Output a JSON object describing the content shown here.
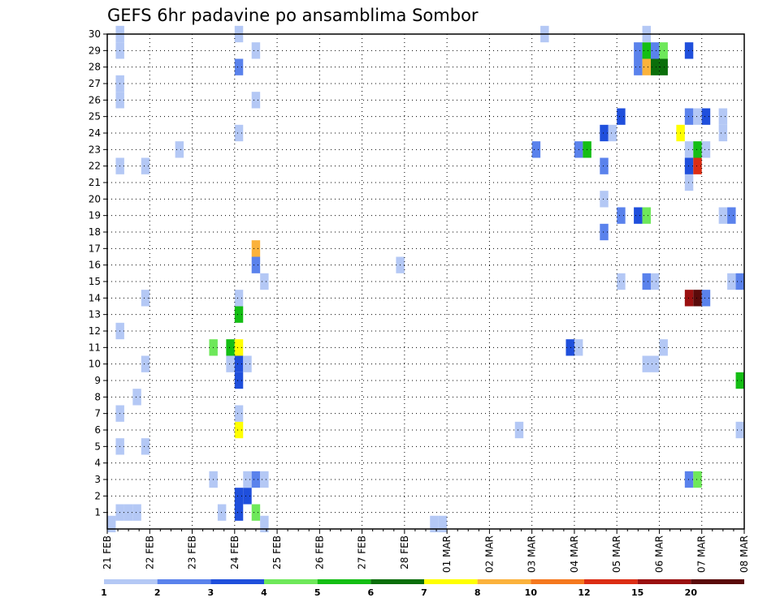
{
  "chart_data": {
    "type": "heatmap",
    "title": "GEFS 6hr padavine po ansamblima Sombor",
    "x_tick_labels": [
      "21 FEB",
      "22 FEB",
      "23 FEB",
      "24 FEB",
      "25 FEB",
      "26 FEB",
      "27 FEB",
      "28 FEB",
      "01 MAR",
      "02 MAR",
      "03 MAR",
      "04 MAR",
      "05 MAR",
      "06 MAR",
      "07 MAR",
      "08 MAR"
    ],
    "y_tick_labels": [
      "1",
      "2",
      "3",
      "4",
      "5",
      "6",
      "7",
      "8",
      "9",
      "10",
      "11",
      "12",
      "13",
      "14",
      "15",
      "16",
      "17",
      "18",
      "19",
      "20",
      "21",
      "22",
      "23",
      "24",
      "25",
      "26",
      "27",
      "28",
      "29",
      "30"
    ],
    "x_range_days": [
      0,
      15
    ],
    "y_range": [
      0,
      30
    ],
    "grid": "dotted",
    "colorbar": {
      "labels": [
        "1",
        "2",
        "3",
        "4",
        "5",
        "6",
        "7",
        "8",
        "10",
        "12",
        "15",
        "20"
      ],
      "colors": [
        "#b4c8f5",
        "#5a82ec",
        "#1f4fdc",
        "#6ee85a",
        "#14be14",
        "#0a6e0a",
        "#ffff00",
        "#fbb23c",
        "#f5781e",
        "#dc2d14",
        "#9a1010",
        "#5a0a0a"
      ]
    },
    "cells": [
      [
        0.2,
        0,
        1
      ],
      [
        0.4,
        0,
        1
      ],
      [
        0.6,
        0,
        1
      ],
      [
        2.6,
        0,
        1
      ],
      [
        3.0,
        0,
        3
      ],
      [
        3.4,
        0,
        4
      ],
      [
        3.0,
        1,
        3
      ],
      [
        3.2,
        1,
        3
      ],
      [
        2.4,
        2,
        1
      ],
      [
        3.2,
        2,
        1
      ],
      [
        3.4,
        2,
        2
      ],
      [
        3.6,
        2,
        1
      ],
      [
        13.6,
        2,
        2
      ],
      [
        13.8,
        2,
        4
      ],
      [
        0.2,
        4,
        1
      ],
      [
        0.8,
        4,
        1
      ],
      [
        3.0,
        5,
        7
      ],
      [
        9.6,
        5,
        1
      ],
      [
        14.8,
        5,
        1
      ],
      [
        0.2,
        6,
        1
      ],
      [
        3.0,
        6,
        1
      ],
      [
        0.6,
        7,
        1
      ],
      [
        3.0,
        8,
        3
      ],
      [
        14.8,
        8,
        5
      ],
      [
        0.8,
        9,
        1
      ],
      [
        2.8,
        9,
        1
      ],
      [
        3.0,
        9,
        3
      ],
      [
        3.2,
        9,
        1
      ],
      [
        12.6,
        9,
        1
      ],
      [
        12.8,
        9,
        1
      ],
      [
        2.4,
        10,
        4
      ],
      [
        2.8,
        10,
        5
      ],
      [
        3.0,
        10,
        7
      ],
      [
        10.8,
        10,
        3
      ],
      [
        11.0,
        10,
        1
      ],
      [
        13.0,
        10,
        1
      ],
      [
        0.2,
        11,
        1
      ],
      [
        3.0,
        12,
        5
      ],
      [
        0.8,
        13,
        1
      ],
      [
        3.0,
        13,
        1
      ],
      [
        13.6,
        13,
        11
      ],
      [
        13.8,
        13,
        12
      ],
      [
        14.0,
        13,
        2
      ],
      [
        3.6,
        14,
        1
      ],
      [
        12.0,
        14,
        1
      ],
      [
        12.6,
        14,
        2
      ],
      [
        12.8,
        14,
        1
      ],
      [
        14.6,
        14,
        1
      ],
      [
        14.8,
        14,
        2
      ],
      [
        3.4,
        15,
        2
      ],
      [
        6.8,
        15,
        1
      ],
      [
        3.4,
        16,
        8
      ],
      [
        11.6,
        17,
        2
      ],
      [
        12.0,
        18,
        2
      ],
      [
        12.4,
        18,
        3
      ],
      [
        12.6,
        18,
        4
      ],
      [
        14.4,
        18,
        1
      ],
      [
        14.6,
        18,
        2
      ],
      [
        11.6,
        19,
        1
      ],
      [
        13.6,
        20,
        1
      ],
      [
        0.2,
        21,
        1
      ],
      [
        0.8,
        21,
        1
      ],
      [
        11.6,
        21,
        2
      ],
      [
        13.6,
        21,
        3
      ],
      [
        13.8,
        21,
        10
      ],
      [
        1.6,
        22,
        1
      ],
      [
        10.0,
        22,
        2
      ],
      [
        11.0,
        22,
        2
      ],
      [
        11.2,
        22,
        5
      ],
      [
        13.6,
        22,
        1
      ],
      [
        13.8,
        22,
        5
      ],
      [
        14.0,
        22,
        1
      ],
      [
        3.0,
        23,
        1
      ],
      [
        11.6,
        23,
        3
      ],
      [
        11.8,
        23,
        1
      ],
      [
        13.4,
        23,
        7
      ],
      [
        14.4,
        23,
        1
      ],
      [
        12.0,
        24,
        3
      ],
      [
        13.6,
        24,
        2
      ],
      [
        13.8,
        24,
        1
      ],
      [
        14.0,
        24,
        3
      ],
      [
        14.4,
        24,
        1
      ],
      [
        0.2,
        25,
        1
      ],
      [
        3.4,
        25,
        1
      ],
      [
        0.2,
        26,
        1
      ],
      [
        3.0,
        27,
        2
      ],
      [
        12.4,
        27,
        2
      ],
      [
        12.6,
        27,
        8
      ],
      [
        12.8,
        27,
        6
      ],
      [
        13.0,
        27,
        6
      ],
      [
        0.2,
        28,
        1
      ],
      [
        3.4,
        28,
        1
      ],
      [
        12.4,
        28,
        2
      ],
      [
        12.6,
        28,
        5
      ],
      [
        12.8,
        28,
        2
      ],
      [
        13.0,
        28,
        4
      ],
      [
        13.6,
        28,
        3
      ],
      [
        0.2,
        29,
        1
      ],
      [
        3.0,
        29,
        1
      ],
      [
        10.2,
        29,
        1
      ],
      [
        12.6,
        29,
        1
      ],
      [
        0.0,
        -0.7,
        1
      ],
      [
        3.6,
        -0.7,
        1
      ],
      [
        7.6,
        -0.7,
        1
      ],
      [
        7.8,
        -0.7,
        1
      ]
    ]
  }
}
